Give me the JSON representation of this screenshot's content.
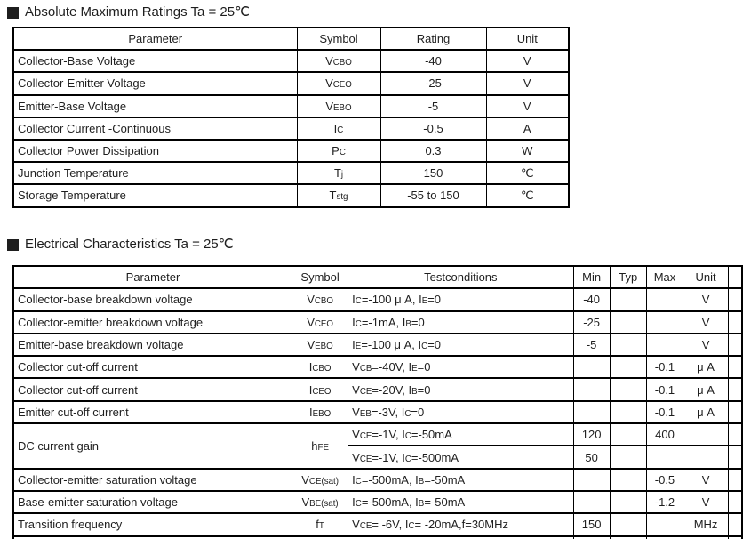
{
  "page": {
    "background": "#ffffff",
    "text_color": "#1e1e1e",
    "border_color": "#000000"
  },
  "sections": {
    "abs_max": {
      "title": "Absolute Maximum Ratings Ta = 25℃"
    },
    "electrical": {
      "title": "Electrical Characteristics Ta = 25℃"
    }
  },
  "abs_max_table": {
    "headers": [
      "Parameter",
      "Symbol",
      "Rating",
      "Unit"
    ],
    "rows": [
      {
        "parameter": "Collector-Base Voltage",
        "symbol": "V~CBO~",
        "rating": "-40",
        "unit": "V"
      },
      {
        "parameter": "Collector-Emitter Voltage",
        "symbol": "V~CEO~",
        "rating": "-25",
        "unit": "V"
      },
      {
        "parameter": "Emitter-Base Voltage",
        "symbol": "V~EBO~",
        "rating": "-5",
        "unit": "V"
      },
      {
        "parameter": "Collector Current -Continuous",
        "symbol": "I~C~",
        "rating": "-0.5",
        "unit": "A"
      },
      {
        "parameter": "Collector Power Dissipation",
        "symbol": "P~C~",
        "rating": "0.3",
        "unit": "W"
      },
      {
        "parameter": "Junction Temperature",
        "symbol": "T~j~",
        "rating": "150",
        "unit": "℃"
      },
      {
        "parameter": "Storage Temperature",
        "symbol": "T~stg~",
        "rating": "-55 to 150",
        "unit": "℃"
      }
    ]
  },
  "electrical_table": {
    "headers": [
      "Parameter",
      "Symbol",
      "Testconditions",
      "Min",
      "Typ",
      "Max",
      "Unit"
    ],
    "rows": [
      {
        "parameter": "Collector-base breakdown voltage",
        "symbol": "V~CBO~",
        "test": "I~C~=-100 μ A, I~E~=0",
        "min": "-40",
        "typ": "",
        "max": "",
        "unit": "V"
      },
      {
        "parameter": "Collector-emitter breakdown voltage",
        "symbol": "V~CEO~",
        "test": "I~C~=-1mA, I~B~=0",
        "min": "-25",
        "typ": "",
        "max": "",
        "unit": "V"
      },
      {
        "parameter": "Emitter-base breakdown voltage",
        "symbol": "V~EBO~",
        "test": "I~E~=-100 μ A, I~C~=0",
        "min": "-5",
        "typ": "",
        "max": "",
        "unit": "V"
      },
      {
        "parameter": "Collector cut-off current",
        "symbol": "I~CBO~",
        "test": "V~CB~=-40V, I~E~=0",
        "min": "",
        "typ": "",
        "max": "-0.1",
        "unit": "μ A"
      },
      {
        "parameter": "Collector cut-off current",
        "symbol": "I~CEO~",
        "test": "V~CE~=-20V, I~B~=0",
        "min": "",
        "typ": "",
        "max": "-0.1",
        "unit": "μ A"
      },
      {
        "parameter": "Emitter cut-off current",
        "symbol": "I~EBO~",
        "test": "V~EB~=-3V, I~C~=0",
        "min": "",
        "typ": "",
        "max": "-0.1",
        "unit": "μ A"
      },
      {
        "parameter": "DC current gain",
        "symbol": "h~FE~",
        "test": "V~CE~=-1V, I~C~=-50mA",
        "min": "120",
        "typ": "",
        "max": "400",
        "unit": ""
      },
      {
        "test": "V~CE~=-1V, I~C~=-500mA",
        "min": "50",
        "typ": "",
        "max": "",
        "unit": ""
      },
      {
        "parameter": "Collector-emitter saturation voltage",
        "symbol": "V~CE(sat)~",
        "test": "I~C~=-500mA, I~B~=-50mA",
        "min": "",
        "typ": "",
        "max": "-0.5",
        "unit": "V"
      },
      {
        "parameter": "Base-emitter saturation voltage",
        "symbol": "V~BE(sat)~",
        "test": "I~C~=-500mA, I~B~=-50mA",
        "min": "",
        "typ": "",
        "max": "-1.2",
        "unit": "V"
      },
      {
        "parameter": "Transition frequency",
        "symbol": "f~T~",
        "test": "V~CE~= -6V, I~C~= -20mA,f=30MHz",
        "min": "150",
        "typ": "",
        "max": "",
        "unit": "MHz"
      }
    ]
  }
}
